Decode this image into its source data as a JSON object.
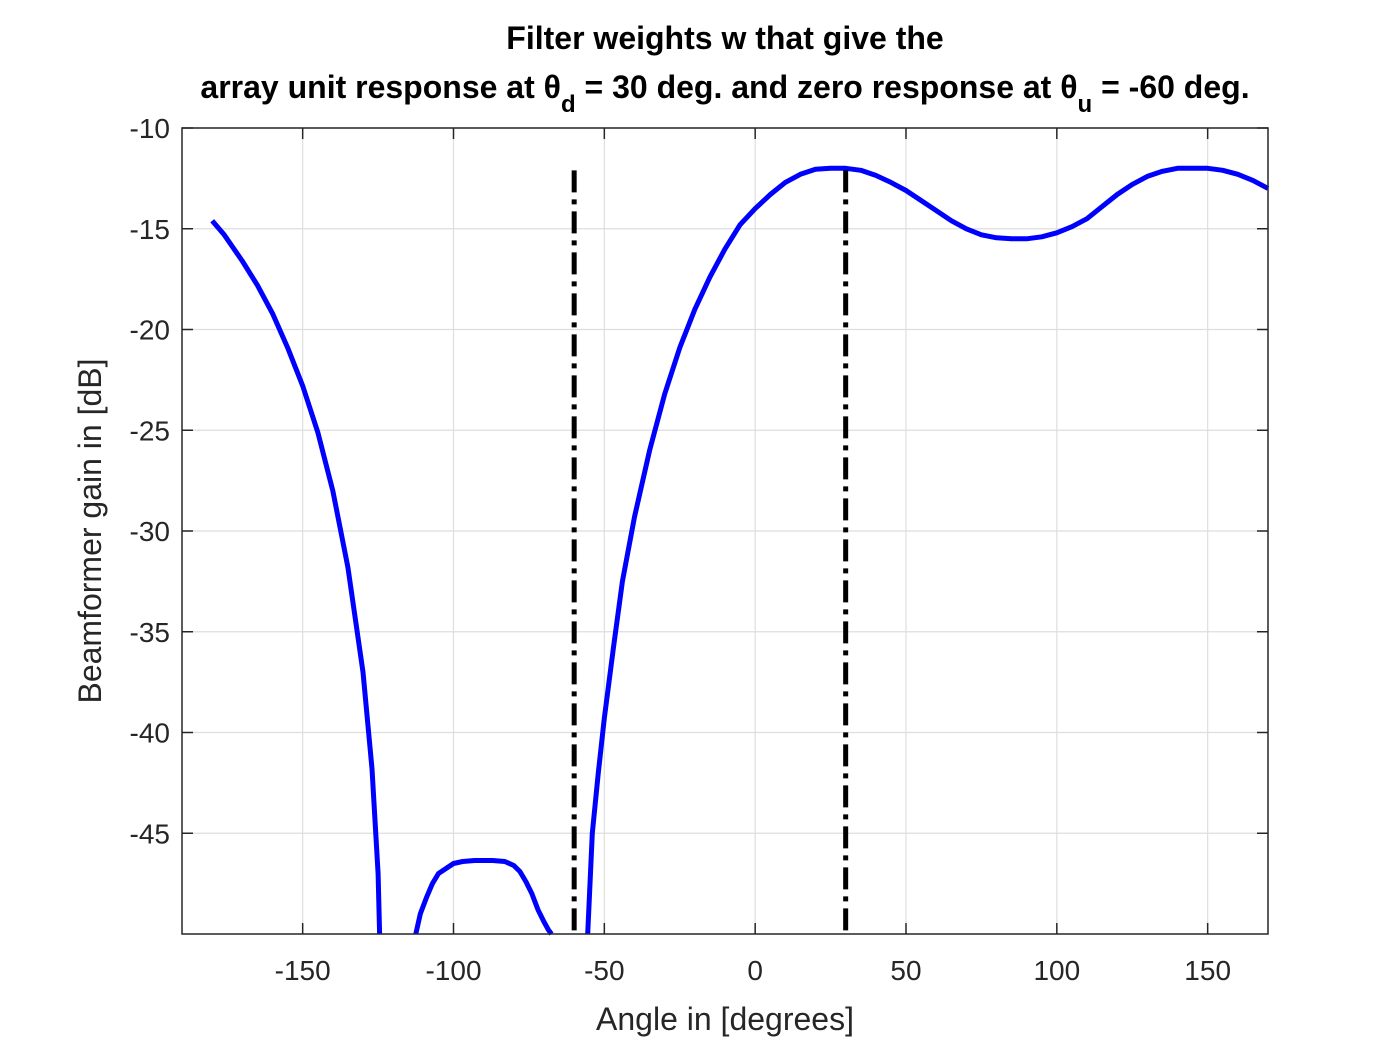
{
  "chart_data": {
    "type": "line",
    "title_line1": "Filter weights w that give the",
    "title_line2": {
      "part1": "array unit response at θ",
      "sub1": "d",
      "part2": " = 30 deg. and zero response at θ",
      "sub2": "u",
      "part3": " = -60 deg."
    },
    "xlabel": "Angle in [degrees]",
    "ylabel": "Beamformer gain in [dB]",
    "xlim": [
      -190,
      170
    ],
    "ylim": [
      -50,
      -10
    ],
    "xticks": [
      -150,
      -100,
      -50,
      0,
      50,
      100,
      150
    ],
    "yticks": [
      -45,
      -40,
      -35,
      -30,
      -25,
      -20,
      -15,
      -10
    ],
    "xtick_labels": [
      "-150",
      "-100",
      "-50",
      "0",
      "50",
      "100",
      "150"
    ],
    "ytick_labels": [
      "-45",
      "-40",
      "-35",
      "-30",
      "-25",
      "-20",
      "-15",
      "-10"
    ],
    "grid": true,
    "series": [
      {
        "color": "#0000ff",
        "segments": [
          {
            "x": [
              -180,
              -176,
              -170,
              -165,
              -160,
              -155,
              -150,
              -145,
              -140,
              -135,
              -130,
              -127,
              -125,
              -124.5
            ],
            "y": [
              -14.6,
              -15.3,
              -16.6,
              -17.8,
              -19.2,
              -20.9,
              -22.8,
              -25.1,
              -28.0,
              -31.8,
              -37.0,
              -41.8,
              -47.0,
              -50
            ]
          },
          {
            "x": [
              -112.5,
              -111,
              -109,
              -107,
              -105,
              -102,
              -100,
              -97,
              -93,
              -90,
              -87,
              -83,
              -80,
              -78,
              -76,
              -74,
              -72,
              -70,
              -68.5,
              -67.5
            ],
            "y": [
              -50,
              -49.0,
              -48.2,
              -47.5,
              -47.0,
              -46.7,
              -46.5,
              -46.4,
              -46.35,
              -46.35,
              -46.35,
              -46.4,
              -46.6,
              -46.9,
              -47.4,
              -48.0,
              -48.8,
              -49.4,
              -49.8,
              -50
            ]
          },
          {
            "x": [
              -55.5,
              -54,
              -52,
              -50,
              -47,
              -44,
              -40,
              -35,
              -30,
              -25,
              -20,
              -15,
              -10,
              -5,
              0,
              5,
              10,
              15,
              20,
              25,
              30,
              35,
              40,
              45,
              50,
              55,
              60,
              65,
              70,
              75,
              80,
              85,
              90,
              95,
              100,
              105,
              110,
              115,
              120,
              125,
              130,
              135,
              140,
              145,
              150,
              155,
              160,
              165,
              170
            ],
            "y": [
              -50,
              -45.0,
              -42.0,
              -39.3,
              -35.8,
              -32.5,
              -29.3,
              -26.0,
              -23.2,
              -20.9,
              -19.0,
              -17.4,
              -16.0,
              -14.8,
              -14.0,
              -13.3,
              -12.7,
              -12.3,
              -12.05,
              -12.0,
              -12.0,
              -12.1,
              -12.35,
              -12.7,
              -13.1,
              -13.6,
              -14.1,
              -14.6,
              -15.0,
              -15.3,
              -15.45,
              -15.5,
              -15.5,
              -15.4,
              -15.2,
              -14.9,
              -14.5,
              -13.9,
              -13.3,
              -12.8,
              -12.4,
              -12.15,
              -12.0,
              -12.0,
              -12.0,
              -12.1,
              -12.3,
              -12.6,
              -13.0
            ]
          }
        ]
      }
    ],
    "markers": [
      {
        "x": -60,
        "y_top": -12.1,
        "y_bottom": -50,
        "color": "#000000",
        "style": "dash-dot"
      },
      {
        "x": 30,
        "y_top": -12.1,
        "y_bottom": -50,
        "color": "#000000",
        "style": "dash-dot"
      }
    ]
  }
}
